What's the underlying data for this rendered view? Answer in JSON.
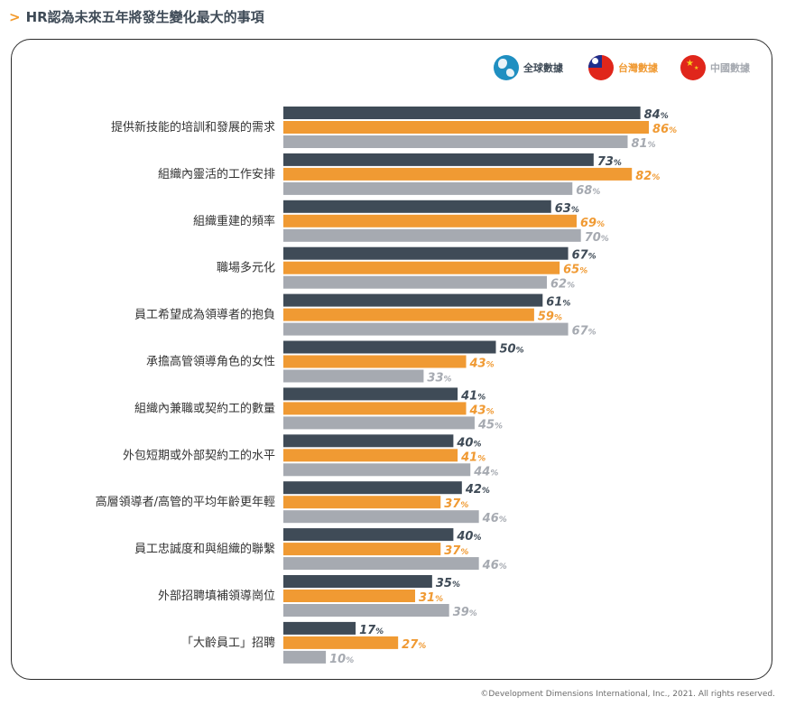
{
  "page": {
    "title": "HR認為未來五年將發生變化最大的事項",
    "footer": "©Development Dimensions International, Inc., 2021. All rights reserved."
  },
  "legend": [
    {
      "label": "全球數據",
      "icon": "globe-icon",
      "color": "#3f4b57"
    },
    {
      "label": "台灣數據",
      "icon": "taiwan-flag-icon",
      "color": "#f09a33"
    },
    {
      "label": "中國數據",
      "icon": "china-flag-icon",
      "color": "#a6aab1"
    }
  ],
  "chart_data": {
    "type": "bar",
    "orientation": "horizontal",
    "value_suffix": "%",
    "categories": [
      "提供新技能的培訓和發展的需求",
      "組織內靈活的工作安排",
      "組織重建的頻率",
      "職場多元化",
      "員工希望成為領導者的抱負",
      "承擔高管領導角色的女性",
      "組織內兼職或契約工的數量",
      "外包短期或外部契約工的水平",
      "高層領導者/高管的平均年齡更年輕",
      "員工忠誠度和與組織的聯繫",
      "外部招聘填補領導崗位",
      "「大齡員工」招聘"
    ],
    "series": [
      {
        "name": "全球數據",
        "color": "#3f4b57",
        "label_color": "#3f4b57",
        "values": [
          84,
          73,
          63,
          67,
          61,
          50,
          41,
          40,
          42,
          40,
          35,
          17
        ]
      },
      {
        "name": "台灣數據",
        "color": "#f09a33",
        "label_color": "#f09a33",
        "values": [
          86,
          82,
          69,
          65,
          59,
          43,
          43,
          41,
          37,
          37,
          31,
          27
        ]
      },
      {
        "name": "中國數據",
        "color": "#a6aab1",
        "label_color": "#a6aab1",
        "values": [
          81,
          68,
          70,
          62,
          67,
          33,
          45,
          44,
          46,
          46,
          39,
          10
        ]
      }
    ],
    "xlim": [
      0,
      100
    ],
    "grid": false,
    "legend_position": "top-right"
  }
}
